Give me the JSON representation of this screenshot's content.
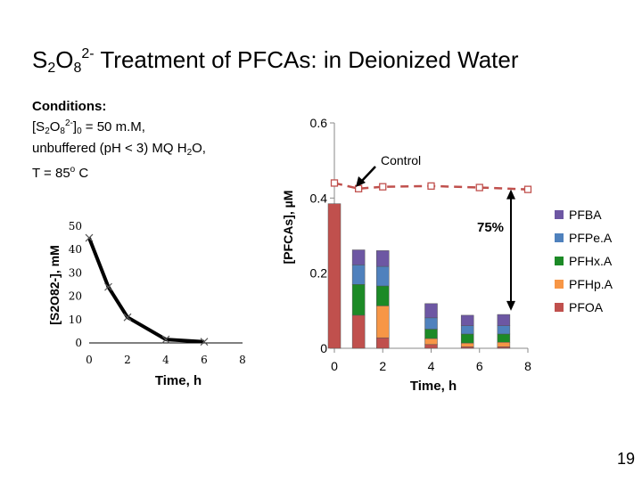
{
  "slide": {
    "title_parts": [
      "S",
      "2",
      "O",
      "8",
      "2-",
      " Treatment of PFCAs: in Deionized Water"
    ],
    "conditions": {
      "heading": "Conditions:",
      "line1_parts": [
        "[S",
        "2",
        "O",
        "8",
        "2-",
        "]",
        "0",
        " = 50 m.M,"
      ],
      "line2_parts": [
        "unbuffered (pH < 3) MQ H",
        "2",
        "O,"
      ],
      "line3_parts": [
        "T = 85",
        "o",
        " C"
      ]
    },
    "slide_number": "19"
  },
  "colors": {
    "PFBA": "#6d57a3",
    "PFPeA": "#4f81bd",
    "PFHxA": "#1c8a26",
    "PFHpA": "#f79646",
    "PFOA": "#c0504d",
    "control": "#c0504d",
    "persulfate": "#000000"
  },
  "chart_data": [
    {
      "type": "line",
      "ylabel": "[S2O82-], mM",
      "xlabel": "Time, h",
      "x_ticks": [
        "0",
        "2",
        "4",
        "6",
        "8"
      ],
      "y_ticks": [
        "0",
        "10",
        "20",
        "30",
        "40",
        "50"
      ],
      "xlim": [
        0,
        8
      ],
      "ylim": [
        0,
        50
      ],
      "series": [
        {
          "points": [
            [
              0,
              45
            ],
            [
              1,
              24
            ],
            [
              2,
              11
            ],
            [
              4,
              1.5
            ],
            [
              6,
              0.5
            ]
          ]
        }
      ]
    },
    {
      "type": "bar",
      "stacked": true,
      "ylabel": "[PFCAs], µM",
      "xlabel": "Time, h",
      "x_ticks": [
        "0",
        "2",
        "4",
        "6",
        "8"
      ],
      "y_ticks": [
        "0",
        "0.2",
        "0.4",
        "0.6"
      ],
      "xlim": [
        0,
        8
      ],
      "ylim": [
        0,
        0.6
      ],
      "legend_position": "right",
      "legend": [
        "PFBA",
        "PFPe.A",
        "PFHx.A",
        "PFHp.A",
        "PFOA"
      ],
      "bars": [
        {
          "x": 0,
          "PFOA": 0.385,
          "PFHpA": 0,
          "PFHxA": 0,
          "PFPeA": 0,
          "PFBA": 0
        },
        {
          "x": 1,
          "PFOA": 0.088,
          "PFHpA": 0,
          "PFHxA": 0.082,
          "PFPeA": 0.052,
          "PFBA": 0.04
        },
        {
          "x": 2,
          "PFOA": 0.028,
          "PFHpA": 0.085,
          "PFHxA": 0.053,
          "PFPeA": 0.052,
          "PFBA": 0.042
        },
        {
          "x": 4,
          "PFOA": 0.01,
          "PFHpA": 0.016,
          "PFHxA": 0.025,
          "PFPeA": 0.03,
          "PFBA": 0.038
        },
        {
          "x": 5.5,
          "PFOA": 0.004,
          "PFHpA": 0.01,
          "PFHxA": 0.024,
          "PFPeA": 0.022,
          "PFBA": 0.028
        },
        {
          "x": 7,
          "PFOA": 0.004,
          "PFHpA": 0.012,
          "PFHxA": 0.022,
          "PFPeA": 0.022,
          "PFBA": 0.03
        }
      ],
      "control": {
        "label": "Control",
        "points": [
          [
            0,
            0.44
          ],
          [
            1,
            0.425
          ],
          [
            2,
            0.43
          ],
          [
            4,
            0.432
          ],
          [
            6,
            0.428
          ],
          [
            8,
            0.423
          ]
        ]
      },
      "annotation": {
        "text": "75%",
        "from": 0.423,
        "to": 0.1,
        "x": 7.3
      }
    }
  ]
}
